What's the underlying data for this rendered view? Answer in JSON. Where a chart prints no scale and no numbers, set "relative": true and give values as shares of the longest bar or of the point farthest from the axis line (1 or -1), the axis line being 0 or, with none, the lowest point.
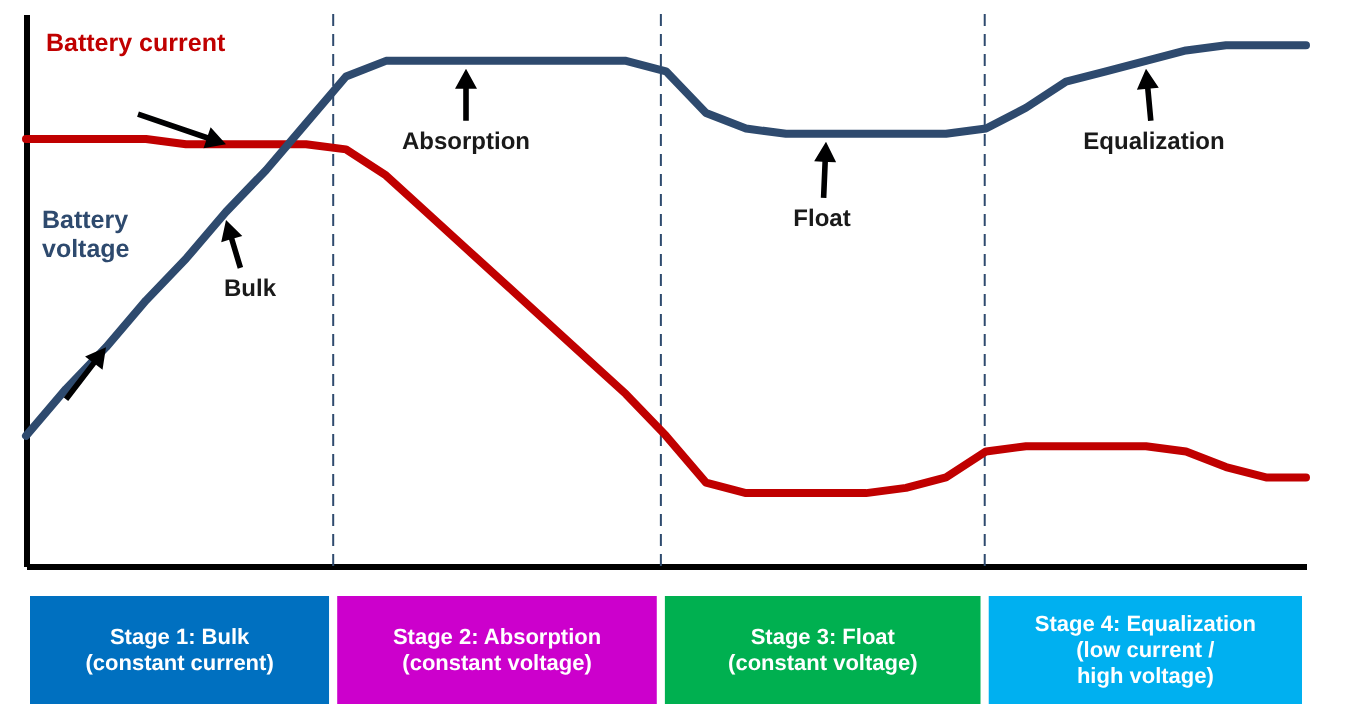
{
  "chart_data": {
    "type": "line",
    "relative": true,
    "tick_labels": false,
    "line_style": "solid",
    "categories": [
      null,
      null,
      null,
      null,
      null,
      null,
      null,
      null,
      null,
      null,
      null,
      null,
      null,
      null,
      null,
      null,
      null,
      null,
      null,
      null,
      null,
      null,
      null,
      null,
      null,
      null,
      null,
      null,
      null,
      null,
      null,
      null,
      null
    ],
    "series": [
      {
        "name": "Battery current",
        "color": "#c00000",
        "values": [
          0.82,
          0.82,
          0.82,
          0.82,
          0.81,
          0.81,
          0.81,
          0.81,
          0.8,
          0.75,
          0.68,
          0.61,
          0.54,
          0.47,
          0.4,
          0.33,
          0.25,
          0.16,
          0.14,
          0.14,
          0.14,
          0.14,
          0.15,
          0.17,
          0.22,
          0.23,
          0.23,
          0.23,
          0.23,
          0.22,
          0.19,
          0.17,
          0.17
        ]
      },
      {
        "name": "Battery voltage",
        "color": "#2e4a6e",
        "values": [
          0.25,
          0.34,
          0.42,
          0.51,
          0.59,
          0.68,
          0.76,
          0.85,
          0.94,
          0.97,
          0.97,
          0.97,
          0.97,
          0.97,
          0.97,
          0.97,
          0.95,
          0.87,
          0.84,
          0.83,
          0.83,
          0.83,
          0.83,
          0.83,
          0.84,
          0.88,
          0.93,
          0.95,
          0.97,
          0.99,
          1,
          1,
          1
        ]
      }
    ],
    "annotations": [
      "Bulk",
      "Absorption",
      "Float",
      "Equalization",
      "Stage 1:  Bulk\n(constant current)",
      "Stage 2: Absorption\n(constant voltage)",
      "Stage 3:  Float\n(constant voltage)",
      "Stage 4: Equalization\n(low current /\nhigh voltage)"
    ]
  }
}
